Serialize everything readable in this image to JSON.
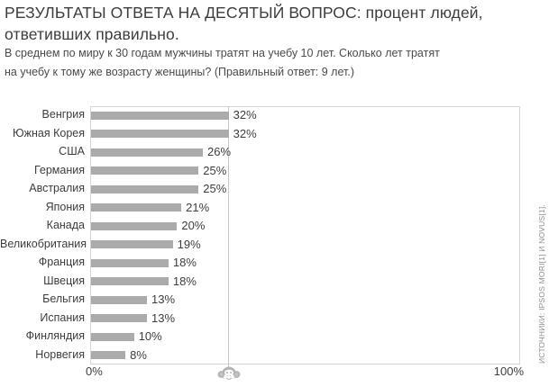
{
  "header": {
    "title_line1": "РЕЗУЛЬТАТЫ ОТВЕТА НА ДЕСЯТЫЙ ВОПРОС: процент людей,",
    "title_line2": "ответивших правильно.",
    "subtitle_line1": "В среднем по миру к 30 годам мужчины тратят на учебу 10 лет. Сколько лет тратят",
    "subtitle_line2": "на учебу к тому же возрасту женщины? (Правильный ответ: 9 лет.)"
  },
  "chart_data": {
    "type": "bar",
    "orientation": "horizontal",
    "categories": [
      "Венгрия",
      "Южная Корея",
      "США",
      "Германия",
      "Австралия",
      "Япония",
      "Канада",
      "Великобритания",
      "Франция",
      "Швеция",
      "Бельгия",
      "Испания",
      "Финляндия",
      "Норвегия"
    ],
    "values": [
      32,
      32,
      26,
      25,
      25,
      21,
      20,
      19,
      18,
      18,
      13,
      13,
      10,
      8
    ],
    "value_labels": [
      "32%",
      "32%",
      "26%",
      "25%",
      "25%",
      "21%",
      "20%",
      "19%",
      "18%",
      "18%",
      "13%",
      "13%",
      "10%",
      "8%"
    ],
    "xlim": [
      0,
      100
    ],
    "x_tick_labels": [
      "0%",
      "100%"
    ],
    "chimp_line_percent": 33,
    "chimp_icon": "chimp-face",
    "bar_color": "#ababab",
    "border_color": "#d5d5d5",
    "chimp_line_color": "#c9c9c9",
    "grid": false
  },
  "source_note": "ИСТОЧНИКИ: IPSOS MORI[1] И NOVUS[1]."
}
